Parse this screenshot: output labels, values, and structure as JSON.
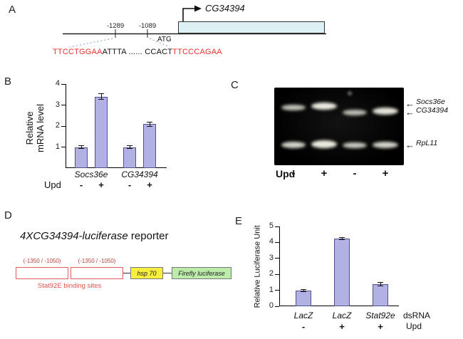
{
  "figure": {
    "panel_a": {
      "label": "A",
      "gene_label": "CG34394",
      "upstream_positions": [
        "-1289",
        "-1089"
      ],
      "atg_label": "ATG",
      "sequence": {
        "red_left": "TTCCTGGAA",
        "middle": "ATTTA ...... CCACT",
        "red_right": "TTCCCAGAA"
      }
    },
    "panel_b": {
      "label": "B",
      "y_axis_label_line1": "Relative",
      "y_axis_label_line2": "mRNA level",
      "upd_row_label": "Upd"
    },
    "panel_c": {
      "label": "C",
      "band_labels": [
        "Socs36e",
        "CG34394",
        "RpL11"
      ],
      "upd_row_label": "Upd",
      "upd_signs": [
        "-",
        "+",
        "-",
        "+"
      ]
    },
    "panel_d": {
      "label": "D",
      "title_italic": "4XCG34394-luciferase",
      "title_regular": " reporter",
      "binding_site_coords": [
        "(-1350 / -1050)",
        "(-1350 / -1050)"
      ],
      "binding_sites_caption": "Stat92E binding sites",
      "hsp70_label": "hsp 70",
      "luciferase_label": "Firefly luciferase"
    },
    "panel_e": {
      "label": "E",
      "y_axis_label": "Relative Luciferase Unit",
      "dsrna_row_label": "dsRNA",
      "upd_row_label": "Upd"
    }
  },
  "icons": {
    "arrow_left": "←"
  },
  "chart_data": [
    {
      "id": "panel-b-chart",
      "type": "bar",
      "title": "Relative mRNA level after Upd stimulation",
      "ylabel": "Relative mRNA level",
      "xlabel": "Upd",
      "ylim": [
        0,
        4
      ],
      "yticks": [
        1,
        2,
        3,
        4
      ],
      "grid": false,
      "legend": "none",
      "groups": [
        {
          "name": "Socs36e",
          "upd": [
            "-",
            "+"
          ],
          "values": [
            1.0,
            3.4
          ],
          "errors": [
            0.07,
            0.15
          ]
        },
        {
          "name": "CG34394",
          "upd": [
            "-",
            "+"
          ],
          "values": [
            1.0,
            2.1
          ],
          "errors": [
            0.08,
            0.12
          ]
        }
      ]
    },
    {
      "id": "panel-e-chart",
      "type": "bar",
      "title": "Relative Luciferase Unit of 4XCG34394-luciferase reporter",
      "ylabel": "Relative Luciferase Unit",
      "ylim": [
        0,
        5
      ],
      "yticks": [
        0,
        1,
        2,
        3,
        4,
        5
      ],
      "grid": false,
      "legend": "none",
      "categories_dsrna": [
        "LacZ",
        "LacZ",
        "Stat92e"
      ],
      "upd": [
        "-",
        "+",
        "+"
      ],
      "values": [
        1.0,
        4.25,
        1.4
      ],
      "errors": [
        0.06,
        0.09,
        0.13
      ]
    }
  ],
  "colors": {
    "bar_fill": "#b1b1e3",
    "bar_border": "#50508c",
    "sequence_red": "#e8312a",
    "gene_box_fill": "#ddf1f5",
    "binding_site_red": "#e05b52",
    "hsp70_yellow": "#f8ee3d",
    "luciferase_green": "#bcecaa",
    "dotted_line_blue": "#7b9cd0"
  }
}
